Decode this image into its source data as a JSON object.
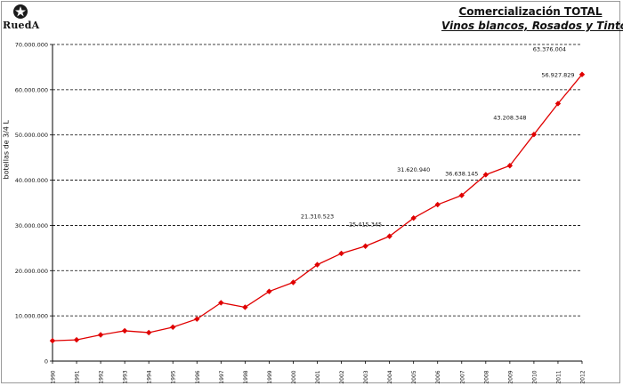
{
  "header": {
    "logo_text": "RuedA",
    "logo_icon": "star-seal-icon",
    "title_line1": "Comercialización TOTAL",
    "title_line2": "Vinos blancos, Rosados y Tintos"
  },
  "colors": {
    "series": "#e00000",
    "grid": "#000000",
    "axis": "#000000"
  },
  "chart_data": {
    "type": "line",
    "title": "Comercialización TOTAL",
    "subtitle": "Vinos blancos, Rosados y Tintos",
    "xlabel": "",
    "ylabel": "botellas de 3/4 L",
    "ylim": [
      0,
      70000000
    ],
    "yticks": [
      0,
      10000000,
      20000000,
      30000000,
      40000000,
      50000000,
      60000000,
      70000000
    ],
    "ytick_labels": [
      "0",
      "10.000.000",
      "20.000.000",
      "30.000.000",
      "40.000.000",
      "50.000.000",
      "60.000.000",
      "70.000.000"
    ],
    "grid": "horizontal-dashed",
    "legend": "none",
    "x": [
      "1990",
      "1991",
      "1992",
      "1993",
      "1994",
      "1995",
      "1996",
      "1997",
      "1998",
      "1999",
      "2000",
      "2001",
      "2002",
      "2003",
      "2004",
      "2005",
      "2006",
      "2007",
      "2008",
      "2009",
      "2010",
      "2011",
      "2012"
    ],
    "series": [
      {
        "name": "",
        "values": [
          4500000,
          4700000,
          5800000,
          6700000,
          6300000,
          7500000,
          9300000,
          12900000,
          11900000,
          15400000,
          17400000,
          21310523,
          23800000,
          25415345,
          27600000,
          31620940,
          34600000,
          36638145,
          41200000,
          43208348,
          50100000,
          56927829,
          63376004
        ]
      }
    ],
    "annotations": [
      {
        "x": "2001",
        "label": "21.310.523"
      },
      {
        "x": "2003",
        "label": "25.415.345"
      },
      {
        "x": "2005",
        "label": "31.620.940"
      },
      {
        "x": "2007",
        "label": "36.638.145"
      },
      {
        "x": "2009",
        "label": "43.208.348"
      },
      {
        "x": "2011",
        "label": "56.927.829"
      },
      {
        "x": "2012",
        "label": "63.376.004"
      }
    ]
  }
}
